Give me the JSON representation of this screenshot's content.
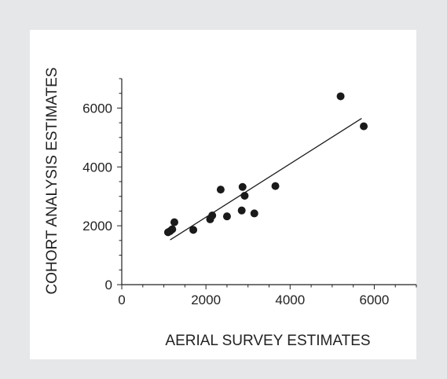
{
  "chart_data": {
    "type": "scatter",
    "title": "",
    "xlabel": "AERIAL SURVEY ESTIMATES",
    "ylabel": "COHORT ANALYSIS ESTIMATES",
    "xlim": [
      0,
      7000
    ],
    "ylim": [
      0,
      7000
    ],
    "x_ticks": [
      "0",
      "2000",
      "4000",
      "6000"
    ],
    "y_ticks": [
      "0",
      "2000",
      "4000",
      "6000"
    ],
    "grid": false,
    "legend": "none",
    "colors": {
      "points": "#1a1a1a",
      "line": "#1a1a1a",
      "axes": "#222222"
    },
    "points": [
      {
        "x": 1100,
        "y": 1780
      },
      {
        "x": 1150,
        "y": 1820
      },
      {
        "x": 1200,
        "y": 1880
      },
      {
        "x": 1250,
        "y": 2120
      },
      {
        "x": 1700,
        "y": 1860
      },
      {
        "x": 2100,
        "y": 2220
      },
      {
        "x": 2150,
        "y": 2350
      },
      {
        "x": 2350,
        "y": 3230
      },
      {
        "x": 2500,
        "y": 2320
      },
      {
        "x": 2850,
        "y": 2520
      },
      {
        "x": 2870,
        "y": 3320
      },
      {
        "x": 2920,
        "y": 3020
      },
      {
        "x": 3150,
        "y": 2420
      },
      {
        "x": 3650,
        "y": 3350
      },
      {
        "x": 5200,
        "y": 6400
      },
      {
        "x": 5750,
        "y": 5380
      }
    ],
    "fit_line": {
      "x": [
        1150,
        5700
      ],
      "y": [
        1520,
        5650
      ]
    }
  }
}
